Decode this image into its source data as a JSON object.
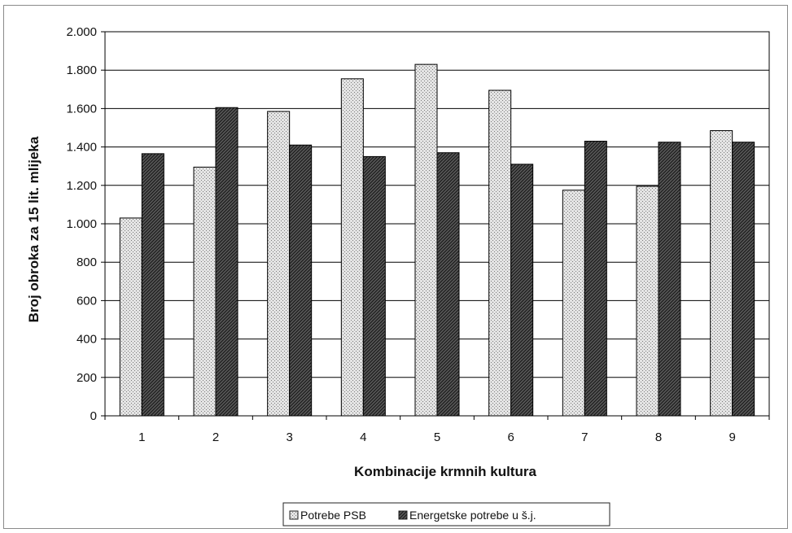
{
  "chart_data": {
    "type": "bar",
    "title": "",
    "xlabel": "Kombinacije krmnih kultura",
    "ylabel": "Broj obroka za 15 lit. mlijeka",
    "categories": [
      "1",
      "2",
      "3",
      "4",
      "5",
      "6",
      "7",
      "8",
      "9"
    ],
    "ylim": [
      0,
      2000
    ],
    "yticks": [
      0,
      200,
      400,
      600,
      800,
      1000,
      1200,
      1400,
      1600,
      1800,
      2000
    ],
    "ytick_labels": [
      "0",
      "200",
      "400",
      "600",
      "800",
      "1.000",
      "1.200",
      "1.400",
      "1.600",
      "1.800",
      "2.000"
    ],
    "grid": "horizontal",
    "legend_position": "bottom",
    "series": [
      {
        "name": "Potrebe PSB",
        "pattern": "dotted-light",
        "values": [
          1030,
          1295,
          1585,
          1755,
          1830,
          1695,
          1175,
          1195,
          1485
        ]
      },
      {
        "name": "Energetske potrebe u š.j.",
        "pattern": "diagonal-hatch-dark",
        "values": [
          1365,
          1605,
          1410,
          1350,
          1370,
          1310,
          1430,
          1425,
          1425
        ]
      }
    ]
  }
}
